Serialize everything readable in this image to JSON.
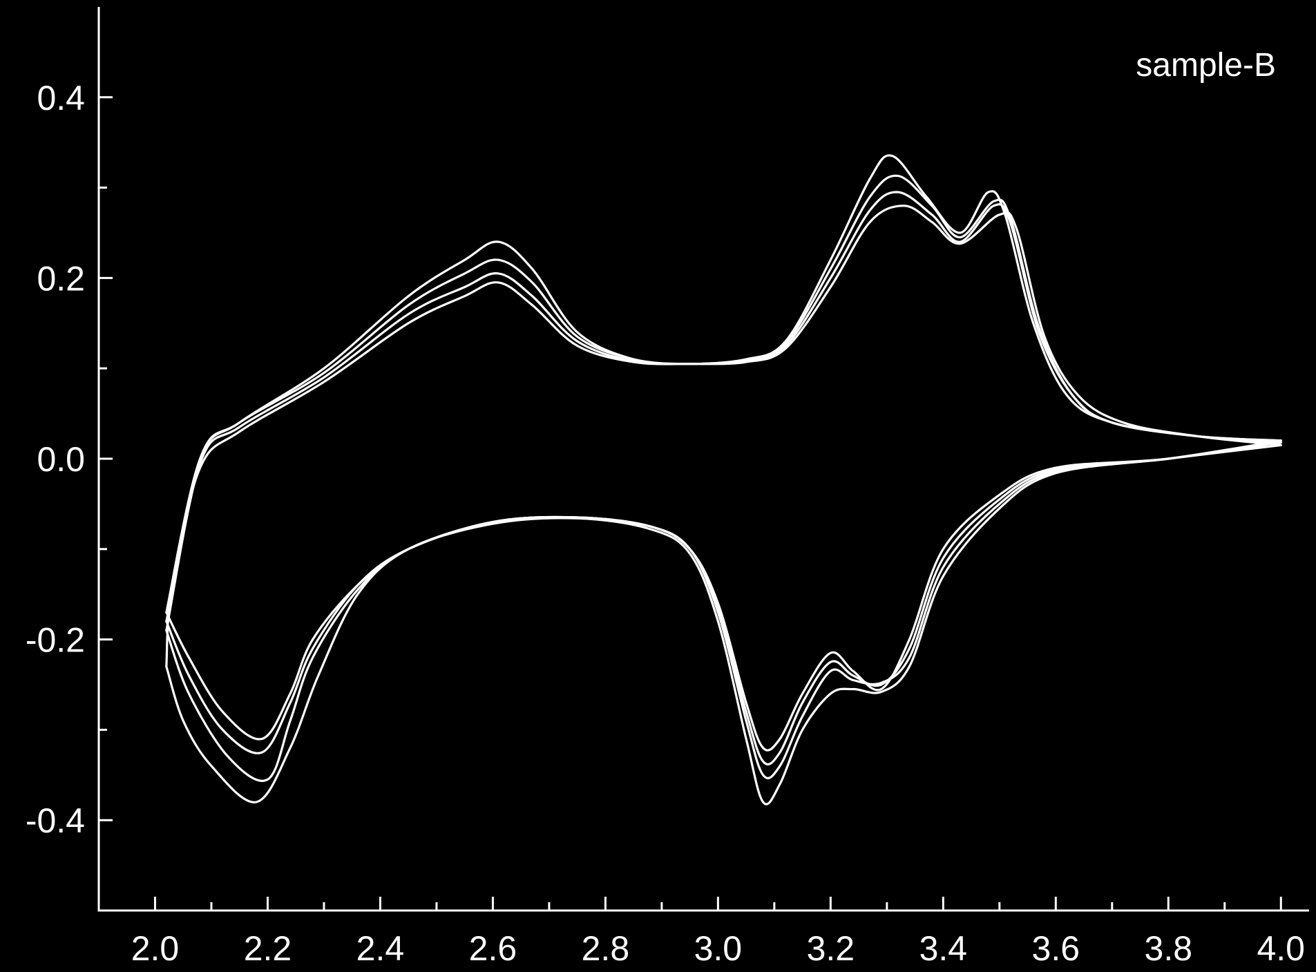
{
  "chart_data": {
    "type": "line",
    "title": "",
    "xlabel": "",
    "ylabel": "",
    "xlim": [
      1.9,
      4.05
    ],
    "ylim": [
      -0.5,
      0.5
    ],
    "x_ticks": [
      "2.0",
      "2.2",
      "2.4",
      "2.6",
      "2.8",
      "3.0",
      "3.2",
      "3.4",
      "3.6",
      "3.8",
      "4.0"
    ],
    "x_tick_values": [
      2.0,
      2.2,
      2.4,
      2.6,
      2.8,
      3.0,
      3.2,
      3.4,
      3.6,
      3.8,
      4.0
    ],
    "y_ticks": [
      "0.4",
      "0.2",
      "0.0",
      "-0.2",
      "-0.4"
    ],
    "y_tick_values": [
      0.4,
      0.2,
      0.0,
      -0.2,
      -0.4
    ],
    "y_minor_tick_values": [
      -0.3,
      -0.1,
      0.1,
      0.3
    ],
    "grid": false,
    "legend": {
      "text": "sample-B",
      "position": "top-right"
    },
    "line_color": "#ffffff",
    "background_color": "#000000",
    "series": [
      {
        "anodic": [
          [
            2.02,
            -0.17
          ],
          [
            2.08,
            0.0
          ],
          [
            2.15,
            0.04
          ],
          [
            2.3,
            0.1
          ],
          [
            2.45,
            0.18
          ],
          [
            2.55,
            0.22
          ],
          [
            2.61,
            0.24
          ],
          [
            2.67,
            0.21
          ],
          [
            2.75,
            0.14
          ],
          [
            2.85,
            0.11
          ],
          [
            2.95,
            0.105
          ],
          [
            3.05,
            0.11
          ],
          [
            3.12,
            0.13
          ],
          [
            3.2,
            0.22
          ],
          [
            3.27,
            0.31
          ],
          [
            3.31,
            0.335
          ],
          [
            3.37,
            0.29
          ],
          [
            3.43,
            0.25
          ],
          [
            3.48,
            0.295
          ],
          [
            3.51,
            0.27
          ],
          [
            3.56,
            0.15
          ],
          [
            3.62,
            0.07
          ],
          [
            3.7,
            0.04
          ],
          [
            3.85,
            0.025
          ],
          [
            4.0,
            0.02
          ]
        ],
        "cathodic": [
          [
            4.0,
            0.02
          ],
          [
            3.8,
            0.0
          ],
          [
            3.6,
            -0.01
          ],
          [
            3.5,
            -0.04
          ],
          [
            3.4,
            -0.1
          ],
          [
            3.34,
            -0.2
          ],
          [
            3.29,
            -0.255
          ],
          [
            3.24,
            -0.235
          ],
          [
            3.2,
            -0.215
          ],
          [
            3.15,
            -0.26
          ],
          [
            3.11,
            -0.31
          ],
          [
            3.08,
            -0.32
          ],
          [
            3.05,
            -0.27
          ],
          [
            3.0,
            -0.16
          ],
          [
            2.95,
            -0.1
          ],
          [
            2.88,
            -0.075
          ],
          [
            2.75,
            -0.065
          ],
          [
            2.6,
            -0.07
          ],
          [
            2.45,
            -0.1
          ],
          [
            2.36,
            -0.14
          ],
          [
            2.28,
            -0.2
          ],
          [
            2.24,
            -0.26
          ],
          [
            2.19,
            -0.31
          ],
          [
            2.12,
            -0.28
          ],
          [
            2.06,
            -0.22
          ],
          [
            2.02,
            -0.17
          ]
        ]
      },
      {
        "anodic": [
          [
            2.02,
            -0.18
          ],
          [
            2.08,
            0.0
          ],
          [
            2.15,
            0.04
          ],
          [
            2.3,
            0.095
          ],
          [
            2.45,
            0.17
          ],
          [
            2.55,
            0.205
          ],
          [
            2.61,
            0.22
          ],
          [
            2.67,
            0.195
          ],
          [
            2.75,
            0.135
          ],
          [
            2.85,
            0.11
          ],
          [
            2.95,
            0.105
          ],
          [
            3.05,
            0.11
          ],
          [
            3.12,
            0.128
          ],
          [
            3.2,
            0.21
          ],
          [
            3.27,
            0.29
          ],
          [
            3.32,
            0.313
          ],
          [
            3.38,
            0.28
          ],
          [
            3.43,
            0.245
          ],
          [
            3.49,
            0.285
          ],
          [
            3.52,
            0.265
          ],
          [
            3.57,
            0.145
          ],
          [
            3.63,
            0.07
          ],
          [
            3.7,
            0.04
          ],
          [
            3.85,
            0.025
          ],
          [
            4.0,
            0.02
          ]
        ],
        "cathodic": [
          [
            4.0,
            0.02
          ],
          [
            3.8,
            0.0
          ],
          [
            3.6,
            -0.012
          ],
          [
            3.5,
            -0.045
          ],
          [
            3.4,
            -0.11
          ],
          [
            3.34,
            -0.21
          ],
          [
            3.29,
            -0.25
          ],
          [
            3.24,
            -0.24
          ],
          [
            3.2,
            -0.225
          ],
          [
            3.15,
            -0.27
          ],
          [
            3.11,
            -0.325
          ],
          [
            3.08,
            -0.335
          ],
          [
            3.05,
            -0.28
          ],
          [
            3.0,
            -0.165
          ],
          [
            2.95,
            -0.1
          ],
          [
            2.88,
            -0.075
          ],
          [
            2.75,
            -0.065
          ],
          [
            2.6,
            -0.07
          ],
          [
            2.45,
            -0.1
          ],
          [
            2.36,
            -0.14
          ],
          [
            2.28,
            -0.21
          ],
          [
            2.24,
            -0.27
          ],
          [
            2.19,
            -0.325
          ],
          [
            2.12,
            -0.3
          ],
          [
            2.06,
            -0.24
          ],
          [
            2.02,
            -0.18
          ]
        ]
      },
      {
        "anodic": [
          [
            2.02,
            -0.19
          ],
          [
            2.08,
            -0.005
          ],
          [
            2.15,
            0.035
          ],
          [
            2.3,
            0.09
          ],
          [
            2.45,
            0.16
          ],
          [
            2.55,
            0.19
          ],
          [
            2.61,
            0.205
          ],
          [
            2.67,
            0.18
          ],
          [
            2.75,
            0.13
          ],
          [
            2.85,
            0.108
          ],
          [
            2.95,
            0.105
          ],
          [
            3.05,
            0.108
          ],
          [
            3.12,
            0.125
          ],
          [
            3.2,
            0.2
          ],
          [
            3.27,
            0.275
          ],
          [
            3.32,
            0.295
          ],
          [
            3.38,
            0.27
          ],
          [
            3.43,
            0.24
          ],
          [
            3.49,
            0.28
          ],
          [
            3.52,
            0.26
          ],
          [
            3.57,
            0.14
          ],
          [
            3.63,
            0.07
          ],
          [
            3.7,
            0.04
          ],
          [
            3.85,
            0.025
          ],
          [
            4.0,
            0.018
          ]
        ],
        "cathodic": [
          [
            4.0,
            0.018
          ],
          [
            3.8,
            0.0
          ],
          [
            3.6,
            -0.014
          ],
          [
            3.5,
            -0.05
          ],
          [
            3.4,
            -0.12
          ],
          [
            3.34,
            -0.22
          ],
          [
            3.29,
            -0.248
          ],
          [
            3.24,
            -0.245
          ],
          [
            3.2,
            -0.235
          ],
          [
            3.15,
            -0.285
          ],
          [
            3.11,
            -0.34
          ],
          [
            3.08,
            -0.35
          ],
          [
            3.05,
            -0.29
          ],
          [
            3.0,
            -0.17
          ],
          [
            2.95,
            -0.1
          ],
          [
            2.88,
            -0.075
          ],
          [
            2.75,
            -0.065
          ],
          [
            2.6,
            -0.07
          ],
          [
            2.45,
            -0.1
          ],
          [
            2.36,
            -0.145
          ],
          [
            2.28,
            -0.22
          ],
          [
            2.24,
            -0.29
          ],
          [
            2.2,
            -0.355
          ],
          [
            2.13,
            -0.33
          ],
          [
            2.06,
            -0.26
          ],
          [
            2.02,
            -0.19
          ]
        ]
      },
      {
        "anodic": [
          [
            2.02,
            -0.23
          ],
          [
            2.03,
            -0.14
          ],
          [
            2.08,
            -0.01
          ],
          [
            2.15,
            0.03
          ],
          [
            2.3,
            0.085
          ],
          [
            2.45,
            0.15
          ],
          [
            2.55,
            0.18
          ],
          [
            2.61,
            0.195
          ],
          [
            2.67,
            0.17
          ],
          [
            2.75,
            0.125
          ],
          [
            2.85,
            0.107
          ],
          [
            2.95,
            0.105
          ],
          [
            3.05,
            0.107
          ],
          [
            3.12,
            0.122
          ],
          [
            3.2,
            0.19
          ],
          [
            3.27,
            0.262
          ],
          [
            3.33,
            0.28
          ],
          [
            3.38,
            0.262
          ],
          [
            3.43,
            0.238
          ],
          [
            3.5,
            0.27
          ],
          [
            3.53,
            0.255
          ],
          [
            3.58,
            0.135
          ],
          [
            3.64,
            0.07
          ],
          [
            3.72,
            0.04
          ],
          [
            3.85,
            0.025
          ],
          [
            4.0,
            0.015
          ]
        ],
        "cathodic": [
          [
            4.0,
            0.015
          ],
          [
            3.8,
            0.0
          ],
          [
            3.6,
            -0.016
          ],
          [
            3.5,
            -0.055
          ],
          [
            3.4,
            -0.13
          ],
          [
            3.34,
            -0.23
          ],
          [
            3.29,
            -0.258
          ],
          [
            3.24,
            -0.255
          ],
          [
            3.2,
            -0.26
          ],
          [
            3.15,
            -0.3
          ],
          [
            3.11,
            -0.36
          ],
          [
            3.08,
            -0.38
          ],
          [
            3.05,
            -0.31
          ],
          [
            3.0,
            -0.18
          ],
          [
            2.95,
            -0.105
          ],
          [
            2.88,
            -0.078
          ],
          [
            2.75,
            -0.066
          ],
          [
            2.6,
            -0.072
          ],
          [
            2.45,
            -0.1
          ],
          [
            2.36,
            -0.15
          ],
          [
            2.29,
            -0.24
          ],
          [
            2.24,
            -0.32
          ],
          [
            2.18,
            -0.38
          ],
          [
            2.1,
            -0.34
          ],
          [
            2.05,
            -0.29
          ],
          [
            2.02,
            -0.23
          ]
        ]
      }
    ]
  }
}
